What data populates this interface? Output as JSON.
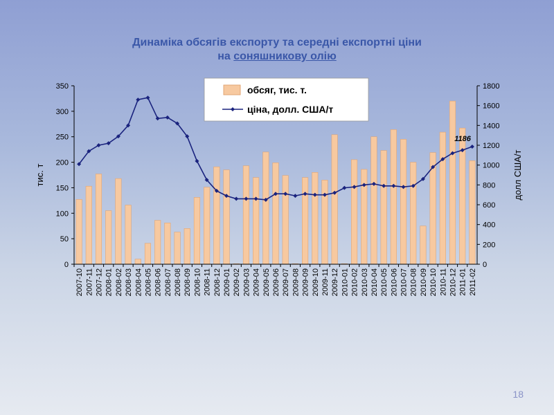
{
  "slide": {
    "title_line1": "Динаміка обсягів експорту та середні експортні ціни",
    "title_line2_prefix": "на ",
    "title_line2_underlined": "соняшникову олію",
    "page_number": "18"
  },
  "colors": {
    "bar": "#f7c9a0",
    "bar_stroke": "#e0a574",
    "line": "#1a237e",
    "title": "#3a57a8"
  },
  "chart_data": {
    "type": "bar",
    "categories": [
      "2007-10",
      "2007-11",
      "2007-12",
      "2008-01",
      "2008-02",
      "2008-03",
      "2008-04",
      "2008-05",
      "2008-06",
      "2008-07",
      "2008-08",
      "2008-09",
      "2008-10",
      "2008-11",
      "2008-12",
      "2009-01",
      "2009-02",
      "2009-03",
      "2009-04",
      "2009-05",
      "2009-06",
      "2009-07",
      "2009-08",
      "2009-09",
      "2009-10",
      "2009-11",
      "2009-12",
      "2010-01",
      "2010-02",
      "2010-03",
      "2010-04",
      "2010-05",
      "2010-06",
      "2010-07",
      "2010-08",
      "2010-09",
      "2010-10",
      "2010-11",
      "2010-12",
      "2011-01",
      "2011-02"
    ],
    "series": [
      {
        "name": "обсяг, тис. т.",
        "type": "bar",
        "axis": "left",
        "values": [
          127,
          153,
          177,
          105,
          168,
          116,
          10,
          41,
          86,
          81,
          63,
          70,
          131,
          151,
          191,
          185,
          1,
          193,
          170,
          220,
          199,
          174,
          1,
          170,
          180,
          165,
          254,
          1,
          205,
          186,
          250,
          223,
          264,
          245,
          200,
          75,
          219,
          259,
          320,
          267,
          203
        ]
      },
      {
        "name": "ціна, долл. США/т",
        "type": "line",
        "axis": "right",
        "values": [
          1010,
          1140,
          1200,
          1220,
          1290,
          1400,
          1660,
          1680,
          1470,
          1480,
          1420,
          1290,
          1040,
          850,
          740,
          690,
          660,
          660,
          660,
          650,
          710,
          710,
          690,
          710,
          700,
          700,
          720,
          770,
          780,
          800,
          810,
          790,
          790,
          780,
          790,
          860,
          980,
          1060,
          1120,
          1150,
          1186
        ]
      }
    ],
    "y_left": {
      "label": "тис. т",
      "min": 0,
      "max": 350,
      "ticks": [
        0,
        50,
        100,
        150,
        200,
        250,
        300,
        350
      ]
    },
    "y_right": {
      "label": "долл США/т",
      "min": 0,
      "max": 1800,
      "ticks": [
        0,
        200,
        400,
        600,
        800,
        1000,
        1200,
        1400,
        1600,
        1800
      ]
    },
    "annotations": [
      {
        "text": "1186",
        "series": 1,
        "index": 40
      }
    ],
    "legend": {
      "placement": "top-center"
    },
    "grid": false
  }
}
